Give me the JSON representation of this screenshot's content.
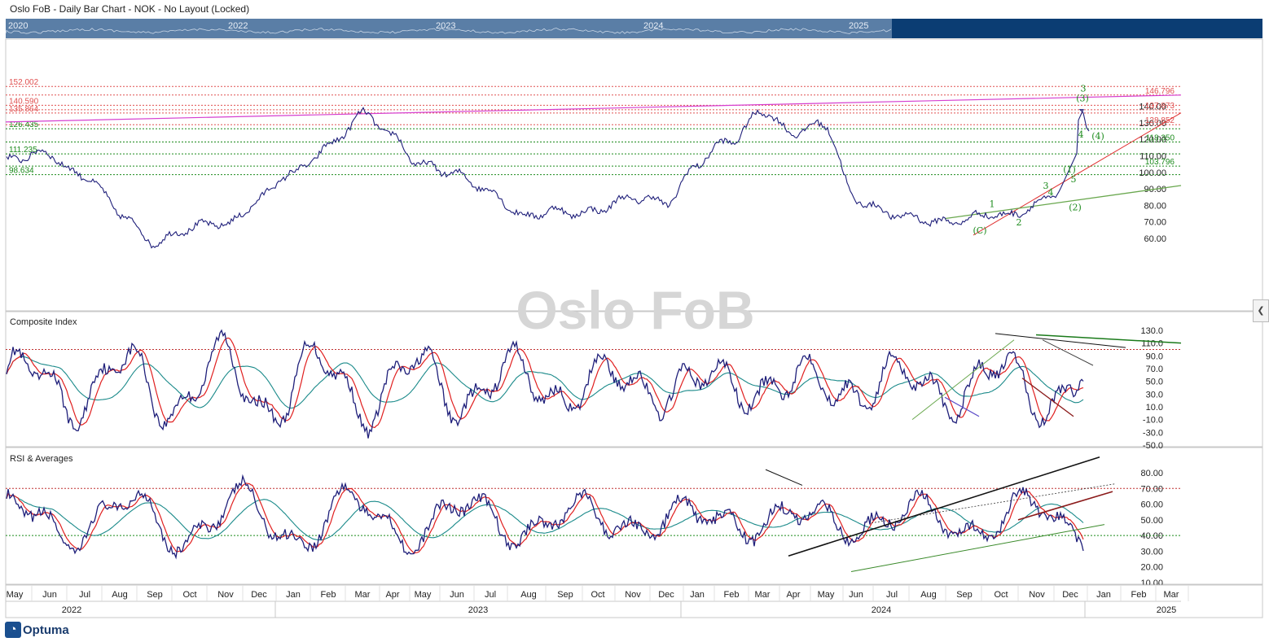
{
  "window": {
    "title": "Oslo FoB - Daily Bar Chart - NOK - No Layout (Locked)"
  },
  "navigator": {
    "years": [
      "2020",
      "2022",
      "2023",
      "2024",
      "2025"
    ]
  },
  "watermark": "Oslo FoB",
  "footer": {
    "logo": "Optuma"
  },
  "chart_data": [
    {
      "type": "line",
      "panel": "price",
      "title": "",
      "ylim": [
        50,
        155
      ],
      "yticks": [
        60,
        70,
        80,
        90,
        100,
        110,
        120,
        130,
        140
      ],
      "ytick_labels": [
        "60.00",
        "70.00",
        "80.00",
        "90.00",
        "100.00",
        "110.00",
        "120.00",
        "130.00",
        "140.00"
      ],
      "x_dates": [
        "2022-05-01",
        "2022-06-01",
        "2022-07-01",
        "2022-08-01",
        "2022-09-01",
        "2022-10-01",
        "2022-11-01",
        "2022-12-01",
        "2023-01-01",
        "2023-02-01",
        "2023-03-01",
        "2023-04-01",
        "2023-05-01",
        "2023-06-01",
        "2023-07-01",
        "2023-08-01",
        "2023-09-01",
        "2023-10-01",
        "2023-11-01",
        "2023-12-01",
        "2024-01-01",
        "2024-02-01",
        "2024-03-01",
        "2024-04-01",
        "2024-05-01",
        "2024-06-01",
        "2024-07-01",
        "2024-08-01",
        "2024-09-01",
        "2024-10-01",
        "2024-11-01",
        "2024-12-01",
        "2024-12-20"
      ],
      "series": [
        {
          "values": [
            106,
            112,
            98,
            74,
            60,
            64,
            70,
            84,
            98,
            118,
            133,
            122,
            106,
            96,
            90,
            72,
            76,
            79,
            82,
            84,
            105,
            118,
            140,
            122,
            128,
            85,
            72,
            73,
            70,
            74,
            82,
            88,
            120
          ],
          "color": "#1f1f7a"
        }
      ],
      "fib_levels": [
        {
          "label": "152.002",
          "value": 152.0,
          "color": "#e05050"
        },
        {
          "label": "146.796",
          "value": 146.8,
          "color": "#e05050"
        },
        {
          "label": "140.590",
          "value": 140.6,
          "color": "#e05050"
        },
        {
          "label": "137.873",
          "value": 137.9,
          "color": "#e05050"
        },
        {
          "label": "135.864",
          "value": 135.9,
          "color": "#e05050"
        },
        {
          "label": "128.852",
          "value": 128.85,
          "color": "#e05050"
        },
        {
          "label": "126.435",
          "value": 126.4,
          "color": "#1a8a1a"
        },
        {
          "label": "118.350",
          "value": 118.35,
          "color": "#1a8a1a"
        },
        {
          "label": "111.235",
          "value": 111.2,
          "color": "#1a8a1a"
        },
        {
          "label": "103.796",
          "value": 103.8,
          "color": "#1a8a1a"
        },
        {
          "label": "98.634",
          "value": 98.6,
          "color": "#1a8a1a"
        }
      ],
      "wave_labels": [
        "(C)",
        "1",
        "2",
        "3",
        "4",
        "5",
        "(1)",
        "(2)",
        "(3)",
        "(4)",
        "3",
        "4"
      ]
    },
    {
      "type": "line",
      "panel": "composite",
      "title": "Composite Index",
      "ylim": [
        -55,
        140
      ],
      "yticks": [
        130,
        110,
        90,
        70,
        50,
        30,
        10,
        -10,
        -30,
        -50
      ],
      "ytick_labels": [
        "130.0",
        "110.0",
        "90.0",
        "70.0",
        "50.0",
        "30.0",
        "10.0",
        "-10.0",
        "-30.0",
        "-50.0"
      ],
      "ref_line": 100,
      "series": [
        {
          "name": "",
          "color": "#1f1f7a"
        },
        {
          "name": "",
          "color": "#e02020"
        },
        {
          "name": "",
          "color": "#1a8a8a"
        }
      ]
    },
    {
      "type": "line",
      "panel": "rsi",
      "title": "RSI & Averages",
      "ylim": [
        8,
        92
      ],
      "yticks": [
        80,
        70,
        60,
        50,
        40,
        30,
        20,
        10
      ],
      "ytick_labels": [
        "80.00",
        "70.00",
        "60.00",
        "50.00",
        "40.00",
        "30.00",
        "20.00",
        "10.00"
      ],
      "ref_lines": [
        70,
        40
      ],
      "series": [
        {
          "name": "",
          "color": "#1f1f7a"
        },
        {
          "name": "",
          "color": "#e02020"
        },
        {
          "name": "",
          "color": "#1a8a8a"
        }
      ]
    }
  ],
  "x_axis": {
    "months": [
      "May",
      "Jun",
      "Jul",
      "Aug",
      "Sep",
      "Oct",
      "Nov",
      "Dec",
      "Jan",
      "Feb",
      "Mar",
      "Apr",
      "May",
      "Jun",
      "Jul",
      "Aug",
      "Sep",
      "Oct",
      "Nov",
      "Dec",
      "Jan",
      "Feb",
      "Mar",
      "Apr",
      "May",
      "Jun",
      "Jul",
      "Aug",
      "Sep",
      "Oct",
      "Nov",
      "Dec",
      "Jan",
      "Feb",
      "Mar"
    ],
    "years": [
      "2022",
      "2023",
      "2024",
      "2025"
    ]
  },
  "colors": {
    "navigator_bg": "#0b3d73",
    "navigator_window": "#5a7ea6",
    "price": "#1f1f7a",
    "magenta": "#d63fd0"
  }
}
